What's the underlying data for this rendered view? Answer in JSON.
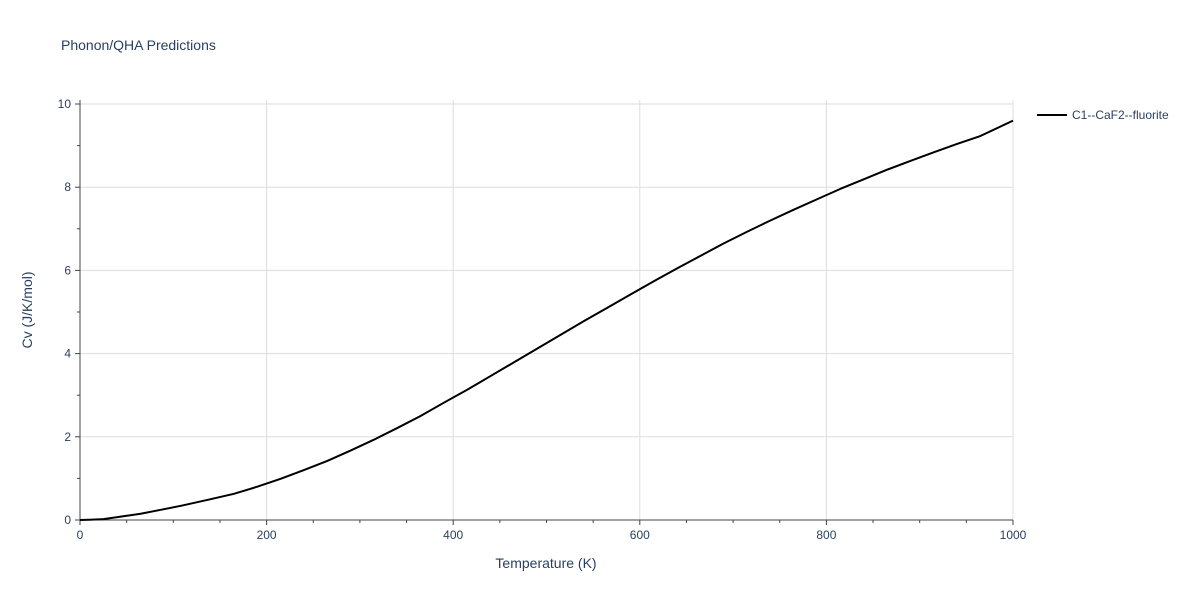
{
  "chart_data": {
    "type": "line",
    "title": "Phonon/QHA Predictions",
    "xlabel": "Temperature (K)",
    "ylabel": "Cv (J/K/mol)",
    "xlim": [
      0,
      1000
    ],
    "ylim": [
      0,
      10
    ],
    "x_major_ticks": [
      0,
      200,
      400,
      600,
      800,
      1000
    ],
    "x_minor_ticks": [
      50,
      100,
      150,
      250,
      300,
      350,
      450,
      500,
      550,
      650,
      700,
      750,
      850,
      900,
      950
    ],
    "y_major_ticks": [
      0,
      2,
      4,
      6,
      8,
      10
    ],
    "y_minor_ticks": [
      1,
      3,
      5,
      7,
      9
    ],
    "x_tick_labels": [
      "0",
      "200",
      "400",
      "600",
      "800",
      "1000"
    ],
    "y_tick_labels": [
      "0",
      "2",
      "4",
      "6",
      "8",
      "10"
    ],
    "grid": true,
    "legend_position": "right",
    "series": [
      {
        "name": "C1--CaF2--fluorite",
        "color": "#000000",
        "x": [
          0,
          10,
          25,
          40,
          65,
          90,
          110,
          140,
          165,
          190,
          215,
          240,
          265,
          290,
          315,
          340,
          365,
          390,
          415,
          440,
          465,
          490,
          515,
          540,
          565,
          590,
          615,
          640,
          665,
          690,
          715,
          740,
          765,
          790,
          815,
          840,
          865,
          890,
          915,
          940,
          965,
          1000
        ],
        "y": [
          0.0,
          0.005,
          0.02,
          0.07,
          0.15,
          0.26,
          0.35,
          0.5,
          0.63,
          0.8,
          0.99,
          1.2,
          1.42,
          1.67,
          1.93,
          2.21,
          2.5,
          2.82,
          3.13,
          3.46,
          3.79,
          4.12,
          4.45,
          4.78,
          5.1,
          5.42,
          5.74,
          6.05,
          6.35,
          6.65,
          6.93,
          7.2,
          7.46,
          7.71,
          7.96,
          8.19,
          8.42,
          8.63,
          8.84,
          9.04,
          9.23,
          9.6
        ]
      }
    ]
  }
}
